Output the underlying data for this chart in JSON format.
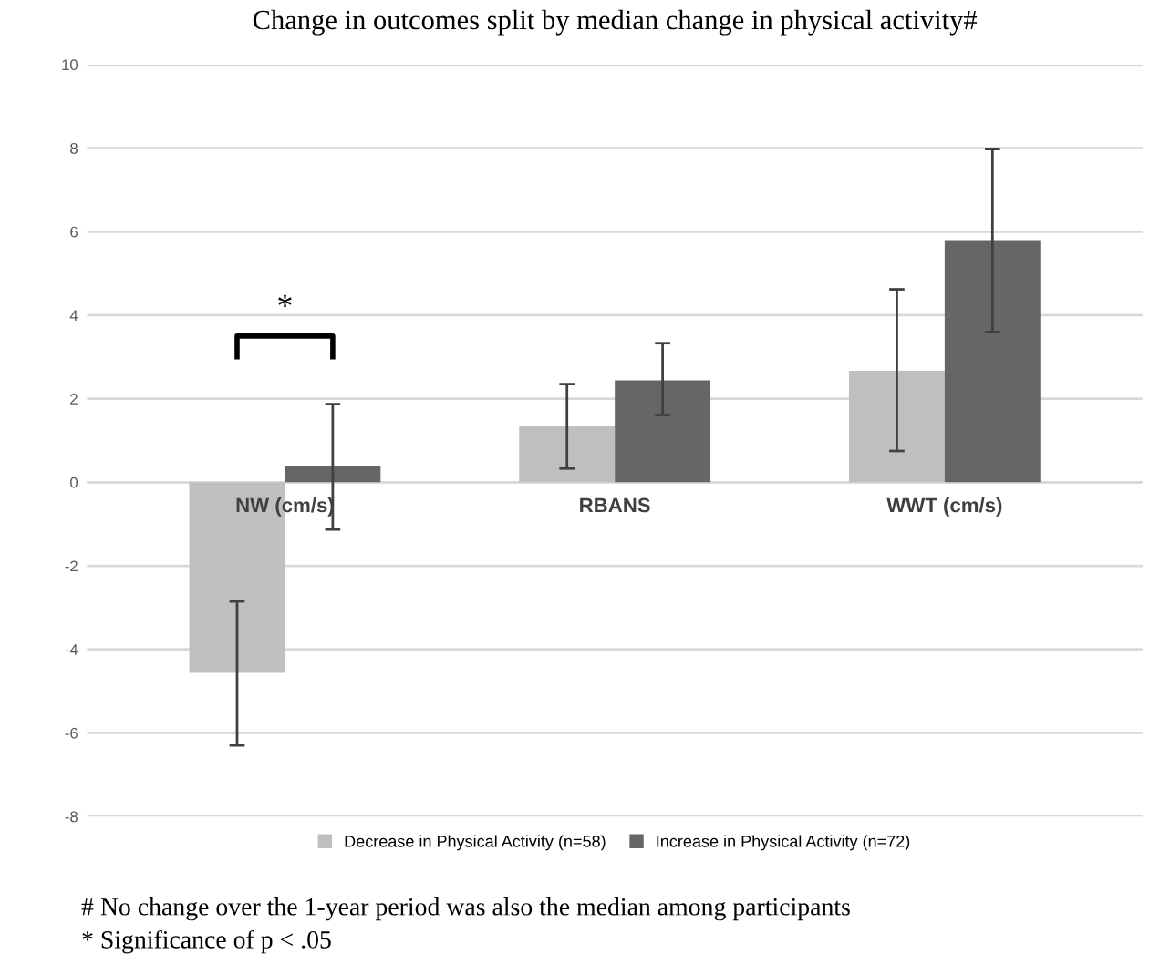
{
  "chart_data": {
    "type": "bar",
    "title": "Change in outcomes split by median change in physical activity#",
    "categories": [
      "NW (cm/s)",
      "RBANS",
      "WWT (cm/s)"
    ],
    "series": [
      {
        "name": "Decrease in Physical Activity (n=58)",
        "color": "#bfbfbf",
        "values": [
          -4.56,
          1.35,
          2.67
        ],
        "errors": [
          [
            -6.3,
            -2.85
          ],
          [
            0.33,
            2.35
          ],
          [
            0.75,
            4.62
          ]
        ]
      },
      {
        "name": "Increase in Physical Activity (n=72)",
        "color": "#666666",
        "values": [
          0.4,
          2.44,
          5.8
        ],
        "errors": [
          [
            -1.13,
            1.87
          ],
          [
            1.61,
            3.33
          ],
          [
            3.6,
            7.98
          ]
        ]
      }
    ],
    "ylim": [
      -8,
      10
    ],
    "yticks": [
      -8,
      -6,
      -4,
      -2,
      0,
      2,
      4,
      6,
      8,
      10
    ],
    "grid": "y",
    "legend": "bottom",
    "annotations": [
      "*",
      "# No change over the 1-year period was also the median among participants",
      "* Significance of p < .05"
    ]
  }
}
